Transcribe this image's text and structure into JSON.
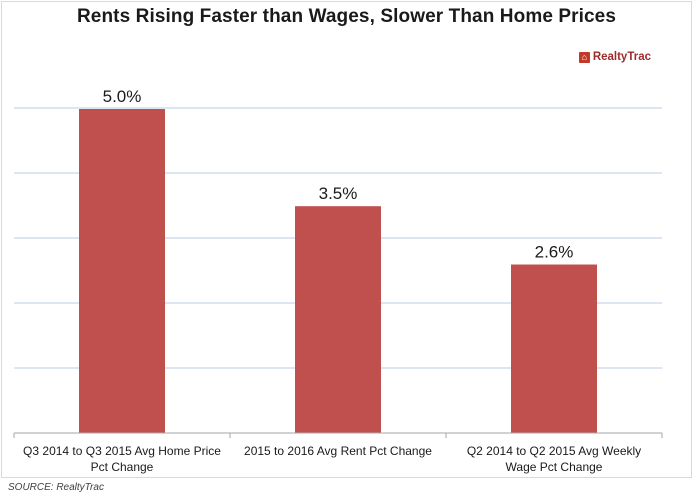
{
  "logo": {
    "mark": "⌂",
    "name": "RealtyTrac"
  },
  "source": "SOURCE:  RealtyTrac",
  "chart_data": {
    "type": "bar",
    "title": "Rents Rising Faster than Wages, Slower Than Home Prices",
    "categories": [
      [
        "Q3 2014 to Q3 2015 Avg Home Price",
        "Pct Change"
      ],
      [
        "2015 to 2016 Avg Rent Pct Change"
      ],
      [
        "Q2 2014 to Q2 2015 Avg Weekly",
        "Wage Pct Change"
      ]
    ],
    "values": [
      5.0,
      3.5,
      2.6
    ],
    "data_labels": [
      "5.0%",
      "3.5%",
      "2.6%"
    ],
    "ylim": [
      0,
      5.0
    ],
    "grid": true,
    "bar_color": "#c0504d",
    "grid_color": "#b9cde5",
    "axis_color": "#a6a6a6"
  }
}
